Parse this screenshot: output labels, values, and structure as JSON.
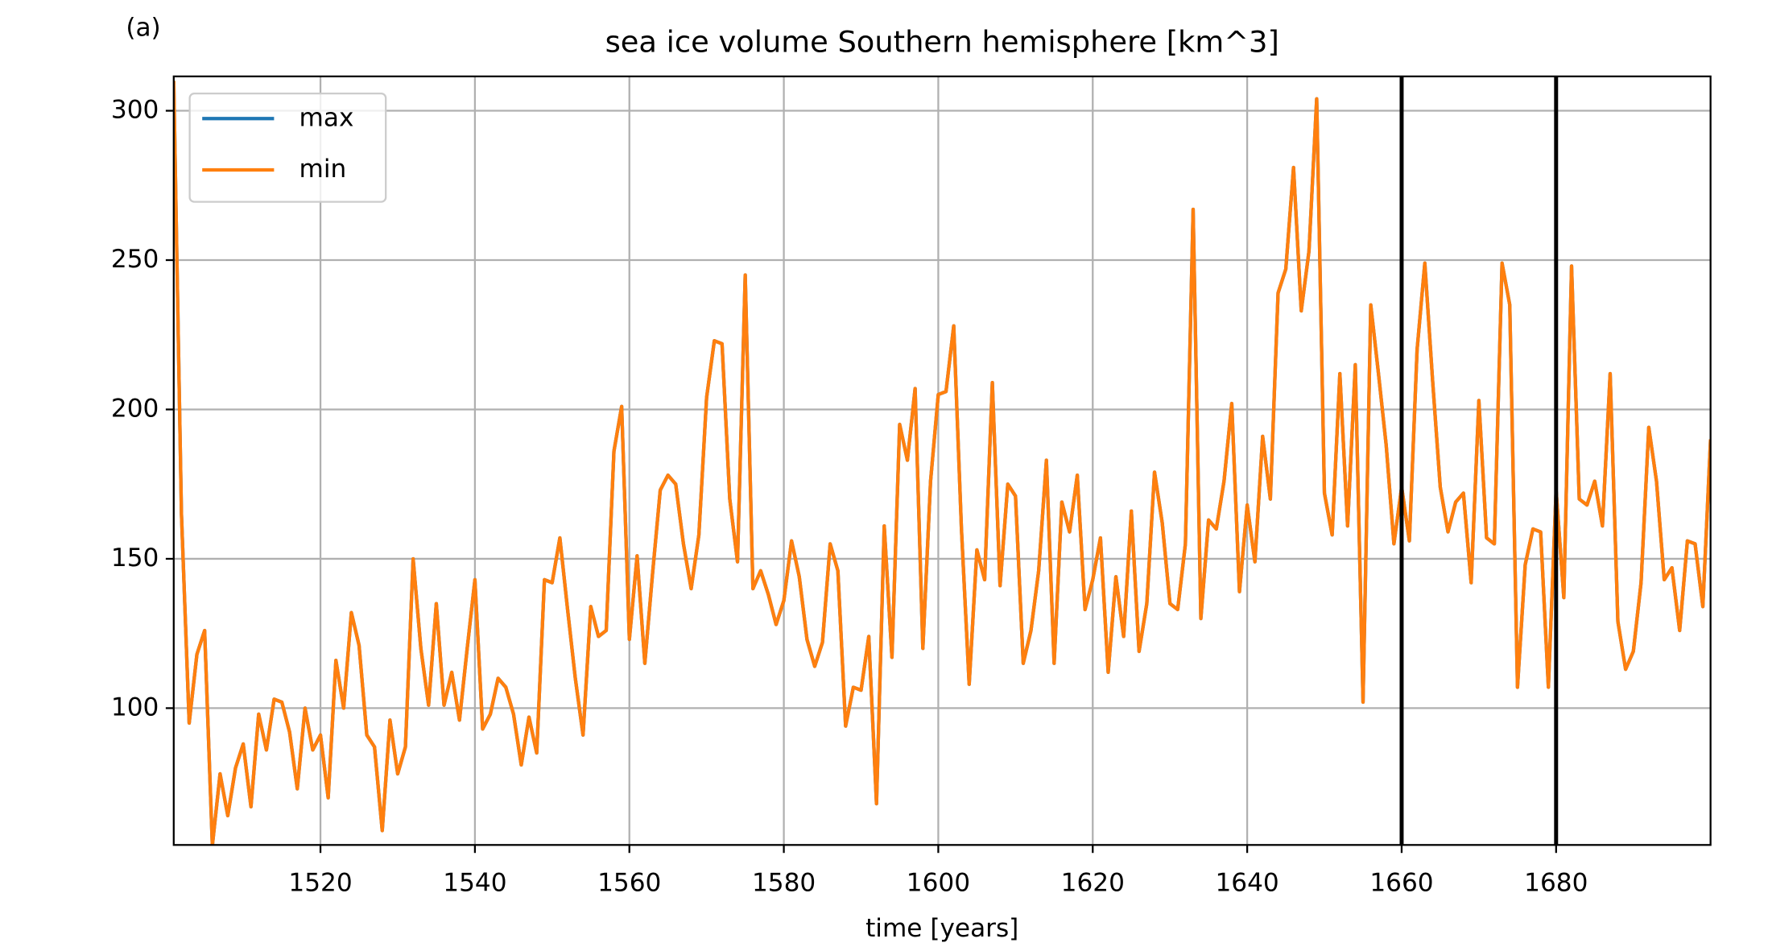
{
  "chart_data": {
    "type": "line",
    "label": "(a)",
    "title": "sea ice volume Southern hemisphere [km^3]",
    "xlabel": "time [years]",
    "x": [
      1501,
      1502,
      1503,
      1504,
      1505,
      1506,
      1507,
      1508,
      1509,
      1510,
      1511,
      1512,
      1513,
      1514,
      1515,
      1516,
      1517,
      1518,
      1519,
      1520,
      1521,
      1522,
      1523,
      1524,
      1525,
      1526,
      1527,
      1528,
      1529,
      1530,
      1531,
      1532,
      1533,
      1534,
      1535,
      1536,
      1537,
      1538,
      1539,
      1540,
      1541,
      1542,
      1543,
      1544,
      1545,
      1546,
      1547,
      1548,
      1549,
      1550,
      1551,
      1552,
      1553,
      1554,
      1555,
      1556,
      1557,
      1558,
      1559,
      1560,
      1561,
      1562,
      1563,
      1564,
      1565,
      1566,
      1567,
      1568,
      1569,
      1570,
      1571,
      1572,
      1573,
      1574,
      1575,
      1576,
      1577,
      1578,
      1579,
      1580,
      1581,
      1582,
      1583,
      1584,
      1585,
      1586,
      1587,
      1588,
      1589,
      1590,
      1591,
      1592,
      1593,
      1594,
      1595,
      1596,
      1597,
      1598,
      1599,
      1600,
      1601,
      1602,
      1603,
      1604,
      1605,
      1606,
      1607,
      1608,
      1609,
      1610,
      1611,
      1612,
      1613,
      1614,
      1615,
      1616,
      1617,
      1618,
      1619,
      1620,
      1621,
      1622,
      1623,
      1624,
      1625,
      1626,
      1627,
      1628,
      1629,
      1630,
      1631,
      1632,
      1633,
      1634,
      1635,
      1636,
      1637,
      1638,
      1639,
      1640,
      1641,
      1642,
      1643,
      1644,
      1645,
      1646,
      1647,
      1648,
      1649,
      1650,
      1651,
      1652,
      1653,
      1654,
      1655,
      1656,
      1657,
      1658,
      1659,
      1660,
      1661,
      1662,
      1663,
      1664,
      1665,
      1666,
      1667,
      1668,
      1669,
      1670,
      1671,
      1672,
      1673,
      1674,
      1675,
      1676,
      1677,
      1678,
      1679,
      1680,
      1681,
      1682,
      1683,
      1684,
      1685,
      1686,
      1687,
      1688,
      1689,
      1690,
      1691,
      1692,
      1693,
      1694,
      1695,
      1696,
      1697,
      1698,
      1699,
      1700
    ],
    "series": [
      {
        "name": "max",
        "color": "#1f77b4",
        "values": [
          310,
          165,
          95,
          118,
          126,
          54,
          78,
          64,
          80,
          88,
          67,
          98,
          86,
          103,
          102,
          92,
          73,
          100,
          86,
          91,
          70,
          116,
          100,
          132,
          121,
          91,
          87,
          59,
          96,
          78,
          87,
          150,
          120,
          101,
          135,
          101,
          112,
          96,
          120,
          143,
          93,
          98,
          110,
          107,
          98,
          81,
          97,
          85,
          143,
          142,
          157,
          133,
          110,
          91,
          134,
          124,
          126,
          186,
          201,
          123,
          151,
          115,
          145,
          173,
          178,
          175,
          155,
          140,
          158,
          204,
          223,
          222,
          170,
          149,
          245,
          140,
          146,
          138,
          128,
          136,
          156,
          144,
          123,
          114,
          122,
          155,
          146,
          94,
          107,
          106,
          124,
          68,
          161,
          117,
          195,
          183,
          207,
          120,
          176,
          205,
          206,
          228,
          160,
          108,
          153,
          143,
          209,
          141,
          175,
          171,
          115,
          126,
          146,
          183,
          115,
          169,
          159,
          178,
          133,
          143,
          157,
          112,
          144,
          124,
          166,
          119,
          135,
          179,
          162,
          135,
          133,
          155,
          267,
          130,
          163,
          160,
          176,
          202,
          139,
          168,
          149,
          191,
          170,
          239,
          247,
          281,
          233,
          253,
          304,
          172,
          158,
          212,
          161,
          215,
          102,
          235,
          212,
          188,
          155,
          174,
          156,
          220,
          249,
          210,
          174,
          159,
          169,
          172,
          142,
          203,
          157,
          155,
          249,
          235,
          107,
          148,
          160,
          159,
          107,
          173,
          137,
          248,
          170,
          168,
          176,
          161,
          212,
          129,
          113,
          119,
          142,
          194,
          176,
          143,
          147,
          126,
          156,
          155,
          134,
          190
        ]
      },
      {
        "name": "min",
        "color": "#ff7f0e",
        "values": [
          310,
          165,
          95,
          118,
          126,
          54,
          78,
          64,
          80,
          88,
          67,
          98,
          86,
          103,
          102,
          92,
          73,
          100,
          86,
          91,
          70,
          116,
          100,
          132,
          121,
          91,
          87,
          59,
          96,
          78,
          87,
          150,
          120,
          101,
          135,
          101,
          112,
          96,
          120,
          143,
          93,
          98,
          110,
          107,
          98,
          81,
          97,
          85,
          143,
          142,
          157,
          133,
          110,
          91,
          134,
          124,
          126,
          186,
          201,
          123,
          151,
          115,
          145,
          173,
          178,
          175,
          155,
          140,
          158,
          204,
          223,
          222,
          170,
          149,
          245,
          140,
          146,
          138,
          128,
          136,
          156,
          144,
          123,
          114,
          122,
          155,
          146,
          94,
          107,
          106,
          124,
          68,
          161,
          117,
          195,
          183,
          207,
          120,
          176,
          205,
          206,
          228,
          160,
          108,
          153,
          143,
          209,
          141,
          175,
          171,
          115,
          126,
          146,
          183,
          115,
          169,
          159,
          178,
          133,
          143,
          157,
          112,
          144,
          124,
          166,
          119,
          135,
          179,
          162,
          135,
          133,
          155,
          267,
          130,
          163,
          160,
          176,
          202,
          139,
          168,
          149,
          191,
          170,
          239,
          247,
          281,
          233,
          253,
          304,
          172,
          158,
          212,
          161,
          215,
          102,
          235,
          212,
          188,
          155,
          174,
          156,
          220,
          249,
          210,
          174,
          159,
          169,
          172,
          142,
          203,
          157,
          155,
          249,
          235,
          107,
          148,
          160,
          159,
          107,
          173,
          137,
          248,
          170,
          168,
          176,
          161,
          212,
          129,
          113,
          119,
          142,
          194,
          176,
          143,
          147,
          126,
          156,
          155,
          134,
          190
        ]
      }
    ],
    "vlines": [
      1660,
      1680
    ],
    "vline_color": "#000000",
    "xlim": [
      1501,
      1700
    ],
    "ylim": [
      54.2,
      311.5
    ],
    "xticks": [
      1520,
      1540,
      1560,
      1580,
      1600,
      1620,
      1640,
      1660,
      1680
    ],
    "yticks": [
      100,
      150,
      200,
      250,
      300
    ],
    "grid": true,
    "legend": "upper left"
  }
}
